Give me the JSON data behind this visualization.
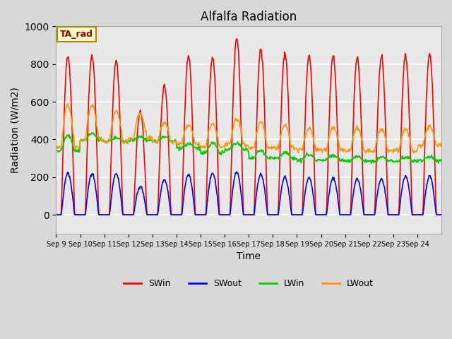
{
  "title": "Alfalfa Radiation",
  "xlabel": "Time",
  "ylabel": "Radiation (W/m2)",
  "ylim": [
    -100,
    1000
  ],
  "background_color": "#e8e8e8",
  "plot_bg_color": "#e8e8e8",
  "grid_color": "white",
  "x_tick_labels": [
    "Sep 9",
    "Sep 10",
    "Sep 11",
    "Sep 12",
    "Sep 13",
    "Sep 14",
    "Sep 15",
    "Sep 16",
    "Sep 17",
    "Sep 18",
    "Sep 19",
    "Sep 20",
    "Sep 21",
    "Sep 22",
    "Sep 23",
    "Sep 24"
  ],
  "legend_label_box": "TA_rad",
  "series": {
    "SWin": {
      "color": "#ff0000",
      "lw": 1.2
    },
    "SWout": {
      "color": "#0000ff",
      "lw": 1.2
    },
    "LWin": {
      "color": "#00cc00",
      "lw": 1.2
    },
    "LWout": {
      "color": "#ff9900",
      "lw": 1.2
    }
  },
  "num_days": 16,
  "pts_per_day": 48,
  "SWin_peaks": [
    845,
    845,
    820,
    550,
    690,
    845,
    840,
    940,
    880,
    860,
    845,
    845,
    835,
    840,
    845,
    855
  ],
  "SWout_peaks": [
    220,
    220,
    220,
    150,
    185,
    215,
    220,
    225,
    215,
    200,
    195,
    195,
    190,
    190,
    205,
    205
  ],
  "LWin_base": [
    340,
    395,
    390,
    395,
    390,
    355,
    330,
    345,
    300,
    300,
    290,
    290,
    285,
    285,
    285,
    288
  ],
  "LWin_peak": [
    420,
    430,
    410,
    415,
    410,
    375,
    380,
    380,
    340,
    330,
    320,
    315,
    310,
    305,
    305,
    310
  ],
  "LWout_base": [
    360,
    400,
    390,
    405,
    385,
    375,
    360,
    370,
    355,
    355,
    345,
    345,
    340,
    340,
    340,
    370
  ],
  "LWout_peak": [
    580,
    580,
    550,
    540,
    490,
    475,
    485,
    510,
    490,
    475,
    460,
    465,
    460,
    455,
    455,
    470
  ]
}
